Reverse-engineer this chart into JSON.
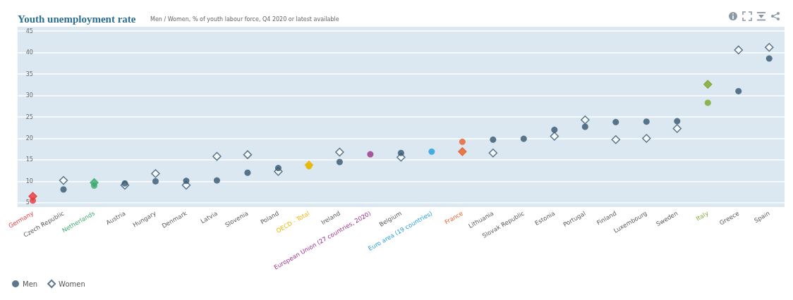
{
  "chart_data": {
    "type": "scatter",
    "title": "Youth unemployment rate",
    "subtitle": "Men / Women, % of youth labour force, Q4 2020 or latest available",
    "categories": [
      "Germany",
      "Czech Republic",
      "Netherlands",
      "Austria",
      "Hungary",
      "Denmark",
      "Latvia",
      "Slovenia",
      "Poland",
      "OECD - Total",
      "Ireland",
      "European Union (27 countries, 2020)",
      "Belgium",
      "Euro area (19 countries)",
      "France",
      "Lithuania",
      "Slovak Republic",
      "Estonia",
      "Portugal",
      "Finland",
      "Luxembourg",
      "Sweden",
      "Italy",
      "Greece",
      "Spain"
    ],
    "series": [
      {
        "name": "Men",
        "marker": "circle",
        "color": "#34566f",
        "colors": [
          "#e8373b",
          "#34566f",
          "#3aaa6e",
          "#34566f",
          "#34566f",
          "#34566f",
          "#34566f",
          "#34566f",
          "#34566f",
          "#e6b800",
          "#34566f",
          "#9b2f8a",
          "#34566f",
          "#1f9ce0",
          "#e5602a",
          "#34566f",
          "#34566f",
          "#34566f",
          "#34566f",
          "#34566f",
          "#34566f",
          "#34566f",
          "#7aa62a",
          "#34566f",
          "#34566f"
        ],
        "values": [
          5.5,
          8.1,
          9.0,
          9.5,
          10.0,
          10.1,
          10.2,
          12.0,
          13.1,
          13.5,
          14.5,
          16.3,
          16.6,
          16.9,
          19.2,
          19.7,
          19.9,
          22.0,
          22.7,
          23.8,
          23.9,
          24.0,
          28.3,
          31.0,
          38.6
        ]
      },
      {
        "name": "Women",
        "marker": "diamond",
        "color": "#34566f",
        "colors": [
          "#e8373b",
          "#34566f",
          "#3aaa6e",
          "#34566f",
          "#34566f",
          "#34566f",
          "#34566f",
          "#34566f",
          "#34566f",
          "#e6b800",
          "#34566f",
          "#9b2f8a",
          "#34566f",
          "#1f9ce0",
          "#e5602a",
          "#34566f",
          "#34566f",
          "#34566f",
          "#34566f",
          "#34566f",
          "#34566f",
          "#34566f",
          "#7aa62a",
          "#34566f",
          "#34566f"
        ],
        "values": [
          6.5,
          10.2,
          9.7,
          9.1,
          11.8,
          9.1,
          15.8,
          16.2,
          12.3,
          13.8,
          16.8,
          null,
          15.6,
          null,
          16.9,
          16.6,
          null,
          20.5,
          24.3,
          19.7,
          20.0,
          22.3,
          32.6,
          40.6,
          41.2
        ]
      }
    ],
    "ylim": [
      4,
      46
    ],
    "yticks": [
      5,
      10,
      15,
      20,
      25,
      30,
      35,
      40,
      45
    ],
    "grid": "y",
    "legend": "bottom left"
  }
}
